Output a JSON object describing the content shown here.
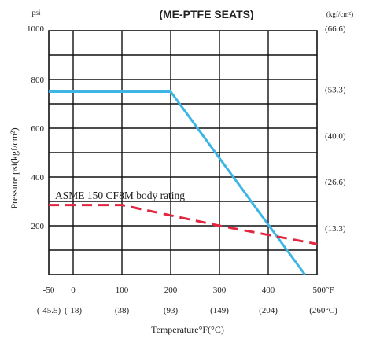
{
  "chart_data": {
    "type": "line",
    "title": "(ME-PTFE  SEATS)",
    "ylabel": "Pressure  psi(kgf/cm²)",
    "xlabel": "Temperature°F(°C)",
    "y_unit_left": "psi",
    "y_unit_right": "(kgf/cm²)",
    "xlim": [
      -50,
      500
    ],
    "ylim": [
      0,
      1000
    ],
    "x_ticks": [
      {
        "value": -50,
        "label": "-50",
        "sub": "(-45.5)"
      },
      {
        "value": 0,
        "label": "0",
        "sub": "(-18)"
      },
      {
        "value": 100,
        "label": "100",
        "sub": "(38)"
      },
      {
        "value": 200,
        "label": "200",
        "sub": "(93)"
      },
      {
        "value": 300,
        "label": "300",
        "sub": "(149)"
      },
      {
        "value": 400,
        "label": "400",
        "sub": "(204)"
      },
      {
        "value": 500,
        "label": "500°F",
        "sub": "(260°C)"
      }
    ],
    "y_ticks_left": [
      {
        "value": 200,
        "label": "200"
      },
      {
        "value": 400,
        "label": "400"
      },
      {
        "value": 600,
        "label": "600"
      },
      {
        "value": 800,
        "label": "800"
      },
      {
        "value": 1000,
        "label": "1000"
      }
    ],
    "y_ticks_right": [
      {
        "value": 190,
        "label": "(13.3)"
      },
      {
        "value": 380,
        "label": "(26.6)"
      },
      {
        "value": 570,
        "label": "(40.0)"
      },
      {
        "value": 760,
        "label": "(53.3)"
      },
      {
        "value": 950,
        "label": "(66.6)"
      }
    ],
    "grid": true,
    "series": [
      {
        "name": "",
        "color": "#3db6e6",
        "style": "solid",
        "x": [
          -50,
          200,
          475
        ],
        "y": [
          750,
          750,
          0
        ]
      },
      {
        "name": "ASME 150 CF8M body rating",
        "color": "#e3263f",
        "style": "dashed",
        "x": [
          -50,
          100,
          300,
          500
        ],
        "y": [
          285,
          285,
          200,
          125
        ]
      }
    ]
  }
}
